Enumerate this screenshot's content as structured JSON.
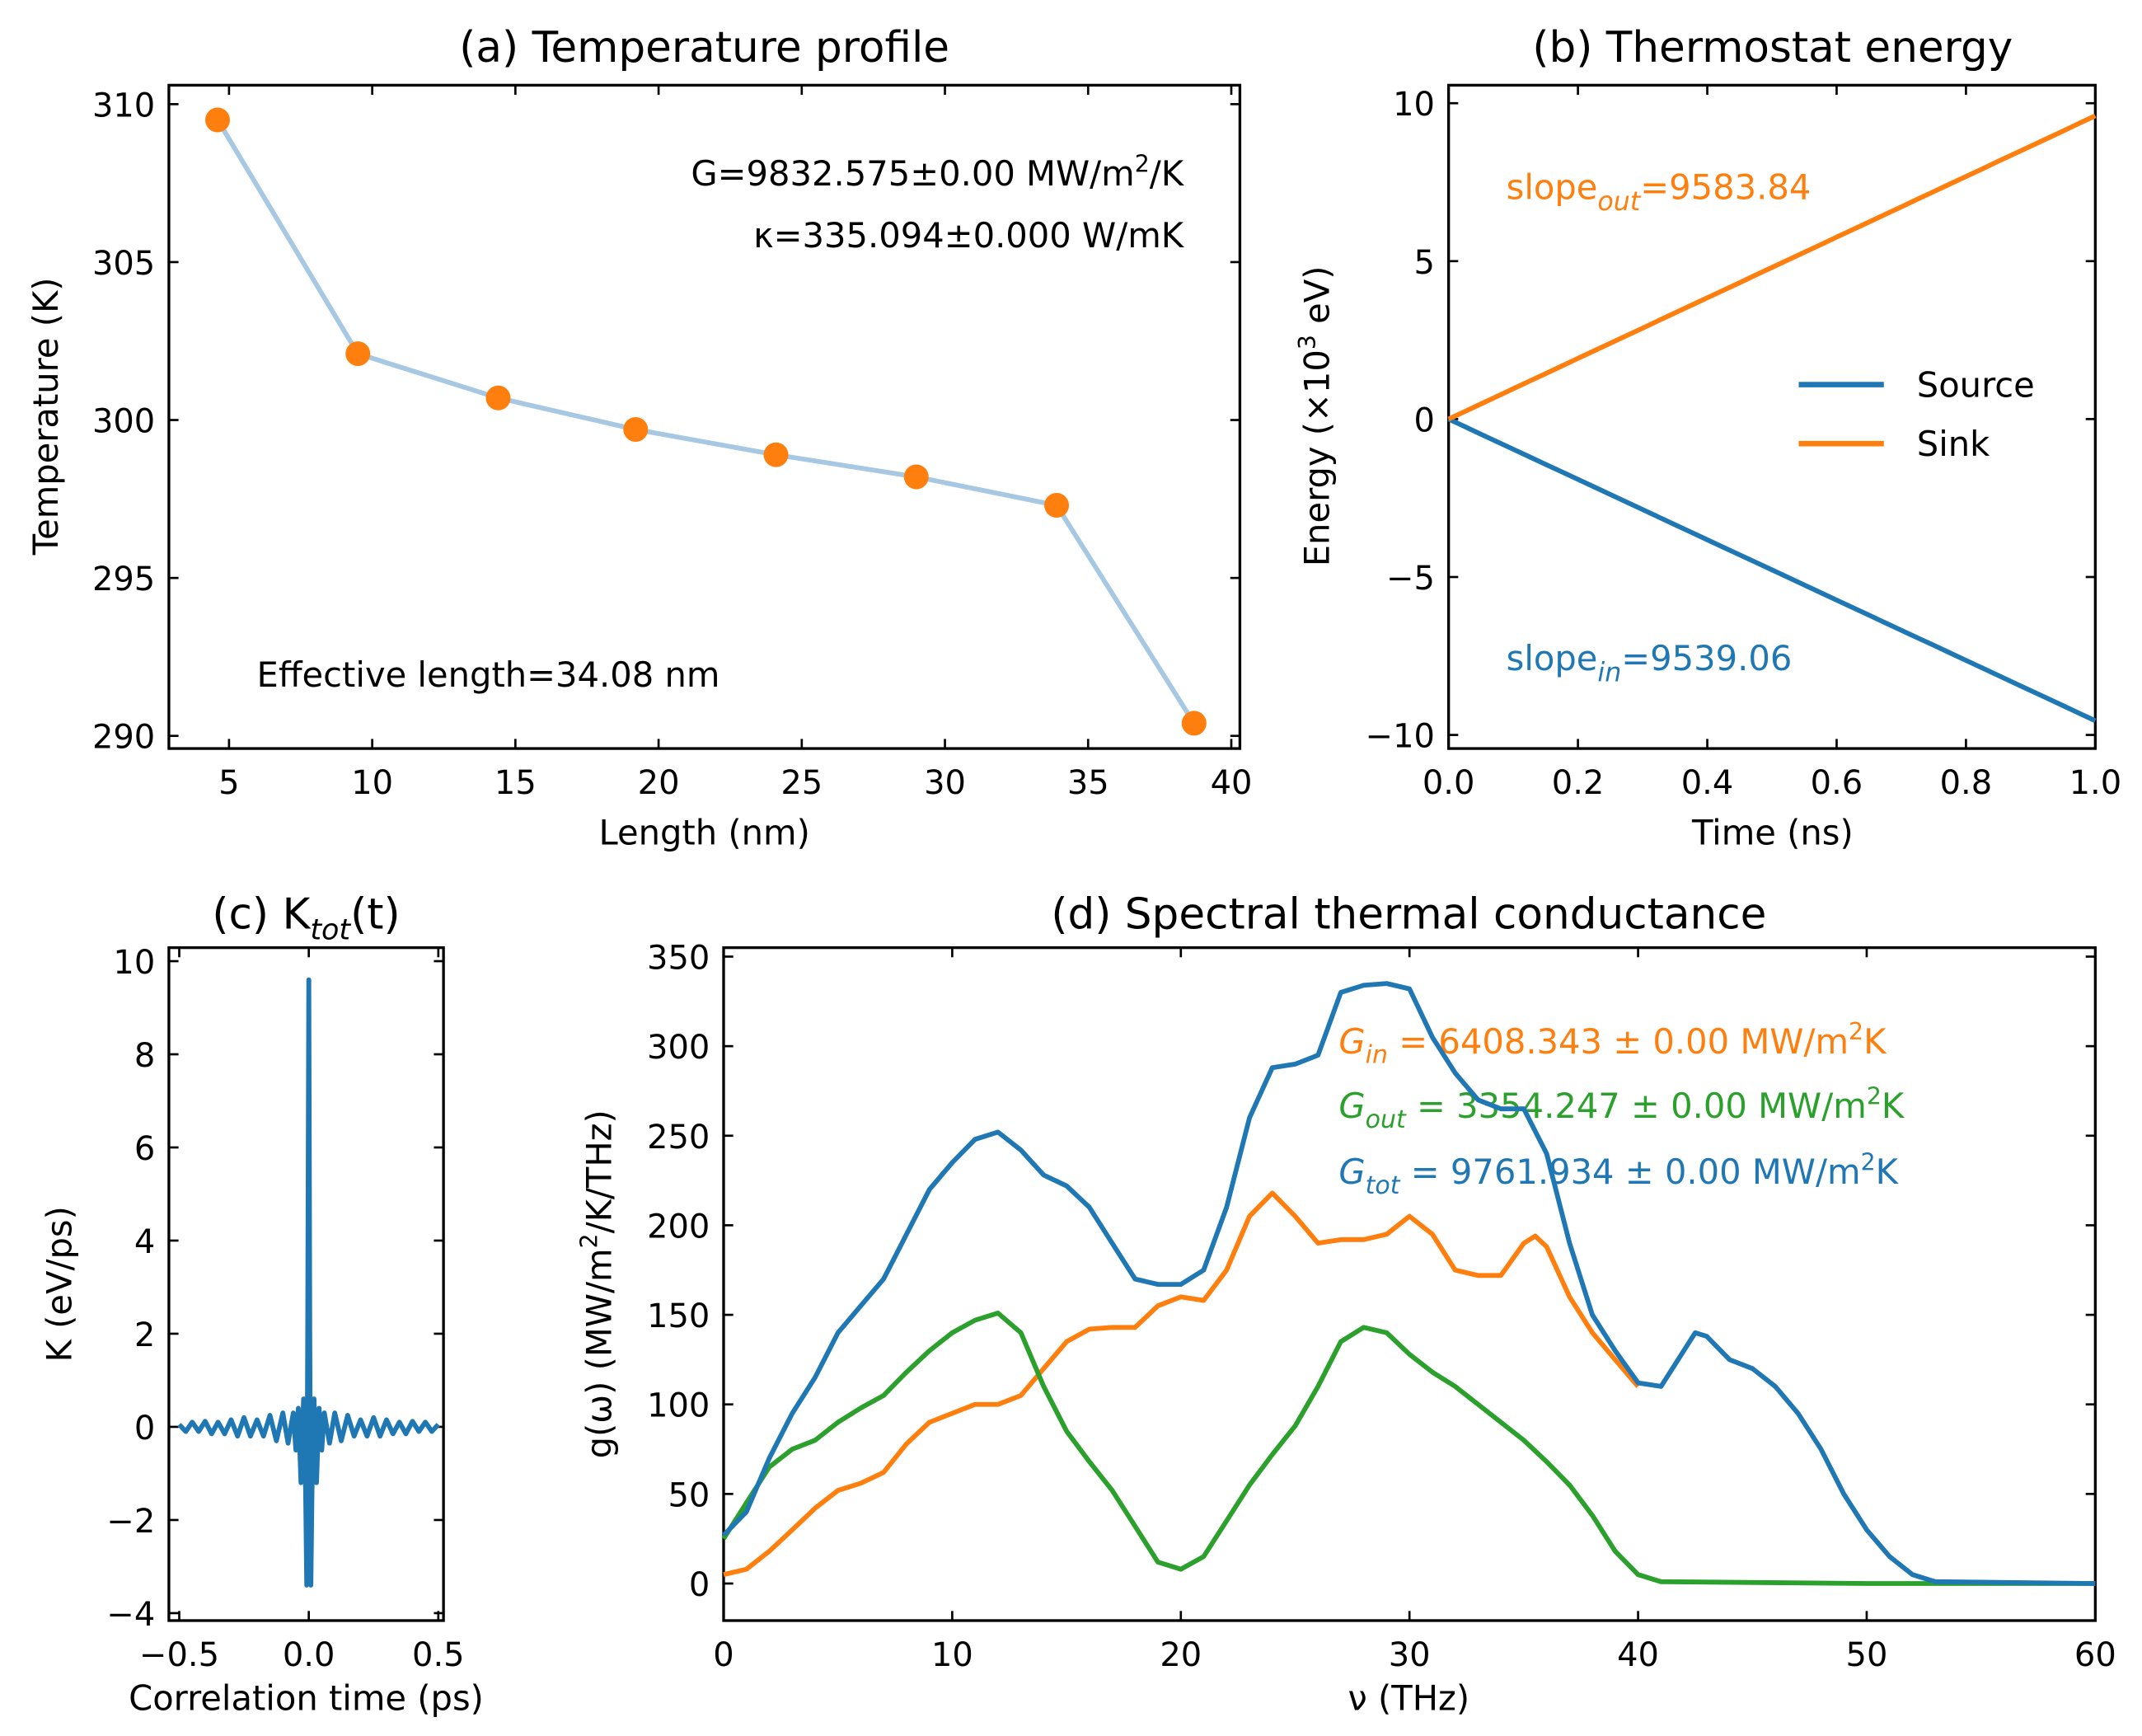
{
  "colors": {
    "blue": "#1f77b4",
    "orange": "#ff7f0e",
    "green": "#2ca02c",
    "light_blue": "#a6c8e2"
  },
  "chart_data": [
    {
      "id": "a",
      "type": "line",
      "title": "(a) Temperature profile",
      "xlabel": "Length (nm)",
      "ylabel": "Temperature (K)",
      "xlim": [
        2.9,
        40.3
      ],
      "ylim": [
        289.6,
        310.6
      ],
      "xticks": [
        5,
        10,
        15,
        20,
        25,
        30,
        35,
        40
      ],
      "yticks": [
        290,
        295,
        300,
        305,
        310
      ],
      "x": [
        4.6,
        9.5,
        14.4,
        19.2,
        24.1,
        29.0,
        33.9,
        38.7
      ],
      "y": [
        309.5,
        302.1,
        300.7,
        299.7,
        298.9,
        298.2,
        297.3,
        290.4
      ],
      "annotations": {
        "G": "G=9832.575±0.00 MW/m",
        "G_sup": "2",
        "G_end": "/K",
        "kappa": "κ=335.094±0.000 W/mK",
        "length": "Effective length=34.08 nm"
      }
    },
    {
      "id": "b",
      "type": "line",
      "title": "(b) Thermostat energy",
      "xlabel": "Time (ns)",
      "ylabel": "Energy (×10",
      "ylabel_sup": "3",
      "ylabel_end": " eV)",
      "xlim": [
        0,
        1
      ],
      "ylim": [
        -10.43,
        10.57
      ],
      "xticks": [
        "0.0",
        "0.2",
        "0.4",
        "0.6",
        "0.8",
        "1.0"
      ],
      "yticks": [
        -10,
        -5,
        0,
        5,
        10
      ],
      "series": [
        {
          "name": "Source",
          "x": [
            0,
            1
          ],
          "y": [
            0,
            -9.55
          ]
        },
        {
          "name": "Sink",
          "x": [
            0,
            1
          ],
          "y": [
            0,
            9.6
          ]
        }
      ],
      "legend": "center-right",
      "annotations": {
        "out_pre": "slope",
        "out_sub": "out",
        "out_val": "=9583.84",
        "in_pre": "slope",
        "in_sub": "in",
        "in_val": "=9539.06"
      }
    },
    {
      "id": "c",
      "type": "line",
      "title": "(c) K",
      "title_sub": "tot",
      "title_end": "(t)",
      "xlabel": "Correlation time (ps)",
      "ylabel": "K (eV/ps)",
      "xlim": [
        -0.54,
        0.52
      ],
      "ylim": [
        -4.16,
        10.29
      ],
      "xticks": [
        "−0.5",
        "0.0",
        "0.5"
      ],
      "xtick_values": [
        -0.5,
        0,
        0.5
      ],
      "yticks": [
        -4,
        -2,
        0,
        2,
        4,
        6,
        8,
        10
      ],
      "x": [
        -0.5,
        -0.475,
        -0.45,
        -0.425,
        -0.4,
        -0.375,
        -0.35,
        -0.325,
        -0.3,
        -0.275,
        -0.25,
        -0.225,
        -0.2,
        -0.175,
        -0.15,
        -0.125,
        -0.1,
        -0.08,
        -0.06,
        -0.05,
        -0.04,
        -0.03,
        -0.02,
        -0.012,
        -0.008,
        -0.004,
        0,
        0.004,
        0.008,
        0.012,
        0.02,
        0.03,
        0.04,
        0.05,
        0.06,
        0.08,
        0.1,
        0.125,
        0.15,
        0.175,
        0.2,
        0.225,
        0.25,
        0.275,
        0.3,
        0.325,
        0.35,
        0.375,
        0.4,
        0.425,
        0.45,
        0.475,
        0.5
      ],
      "y": [
        0.05,
        -0.1,
        0.1,
        -0.1,
        0.12,
        -0.15,
        0.1,
        -0.15,
        0.15,
        -0.2,
        0.2,
        -0.2,
        0.15,
        -0.2,
        0.25,
        -0.3,
        0.3,
        -0.35,
        0.3,
        -0.5,
        0.4,
        -1.2,
        0.6,
        -1.4,
        -3.4,
        2.0,
        9.6,
        2.0,
        -3.4,
        -1.4,
        0.6,
        -1.2,
        0.4,
        -0.5,
        0.3,
        -0.35,
        0.3,
        -0.3,
        0.25,
        -0.2,
        0.15,
        -0.2,
        0.2,
        -0.2,
        0.15,
        -0.15,
        0.1,
        -0.15,
        0.12,
        -0.1,
        0.1,
        -0.1,
        0.05
      ]
    },
    {
      "id": "d",
      "type": "line",
      "title": "(d) Spectral thermal conductance",
      "xlabel": "ν (THz)",
      "ylabel": "g(ω) (MW/m",
      "ylabel_sup": "2",
      "ylabel_end": "/K/THz)",
      "xlim": [
        0,
        60
      ],
      "ylim": [
        -20.7,
        355
      ],
      "xticks": [
        0,
        10,
        20,
        30,
        40,
        50,
        60
      ],
      "yticks": [
        0,
        50,
        100,
        150,
        200,
        250,
        300,
        350
      ],
      "series": [
        {
          "name": "tot",
          "x": [
            0,
            1,
            2,
            3,
            4,
            5,
            6,
            7,
            8,
            9,
            10,
            11,
            12,
            13,
            14,
            15,
            16,
            17,
            18,
            19,
            20,
            21,
            22,
            23,
            24,
            25,
            26,
            27,
            28,
            29,
            30,
            31,
            32,
            33,
            34,
            35,
            36,
            37,
            38,
            39,
            40,
            41,
            42,
            42.5,
            43,
            44,
            45,
            46,
            47,
            48,
            49,
            50,
            51,
            52,
            53,
            60
          ],
          "y": [
            27,
            40,
            70,
            95,
            115,
            140,
            155,
            170,
            195,
            220,
            235,
            248,
            252,
            242,
            228,
            222,
            210,
            190,
            170,
            167,
            167,
            175,
            210,
            260,
            288,
            290,
            295,
            330,
            334,
            335,
            332,
            305,
            285,
            270,
            265,
            265,
            240,
            190,
            150,
            130,
            112,
            110,
            130,
            140,
            138,
            125,
            120,
            110,
            95,
            75,
            50,
            30,
            15,
            5,
            1,
            0
          ]
        },
        {
          "name": "in",
          "x": [
            0,
            1,
            2,
            3,
            4,
            5,
            6,
            7,
            8,
            9,
            10,
            11,
            12,
            13,
            14,
            15,
            16,
            17,
            18,
            19,
            20,
            21,
            22,
            23,
            24,
            25,
            26,
            27,
            28,
            29,
            30,
            31,
            32,
            33,
            34,
            35,
            35.5,
            36,
            37,
            38,
            39,
            40
          ],
          "y": [
            5,
            8,
            18,
            30,
            42,
            52,
            56,
            62,
            78,
            90,
            95,
            100,
            100,
            105,
            120,
            135,
            142,
            143,
            143,
            155,
            160,
            158,
            175,
            205,
            218,
            205,
            190,
            192,
            192,
            195,
            205,
            195,
            175,
            172,
            172,
            190,
            194,
            188,
            160,
            140,
            125,
            110
          ]
        },
        {
          "name": "out",
          "x": [
            0,
            1,
            2,
            3,
            4,
            5,
            6,
            7,
            8,
            9,
            10,
            11,
            12,
            13,
            14,
            15,
            16,
            17,
            18,
            19,
            20,
            21,
            22,
            23,
            24,
            25,
            26,
            27,
            28,
            29,
            30,
            31,
            32,
            33,
            34,
            35,
            36,
            37,
            38,
            39,
            40,
            41,
            50,
            60
          ],
          "y": [
            25,
            45,
            65,
            75,
            80,
            90,
            98,
            105,
            118,
            130,
            140,
            147,
            151,
            140,
            110,
            85,
            68,
            52,
            32,
            12,
            8,
            15,
            35,
            55,
            72,
            88,
            110,
            135,
            143,
            140,
            128,
            118,
            110,
            100,
            90,
            80,
            68,
            55,
            38,
            18,
            5,
            1,
            0,
            0
          ]
        }
      ],
      "annotations": {
        "in_pre": "G",
        "in_sub": "in",
        "in_val": " = 6408.343 ± 0.00 MW/m",
        "in_sup": "2",
        "in_end": "K",
        "out_pre": "G",
        "out_sub": "out",
        "out_val": " = 3354.247 ± 0.00 MW/m",
        "out_sup": "2",
        "out_end": "K",
        "tot_pre": "G",
        "tot_sub": "tot",
        "tot_val": " = 9761.934 ± 0.00 MW/m",
        "tot_sup": "2",
        "tot_end": "K"
      }
    }
  ]
}
